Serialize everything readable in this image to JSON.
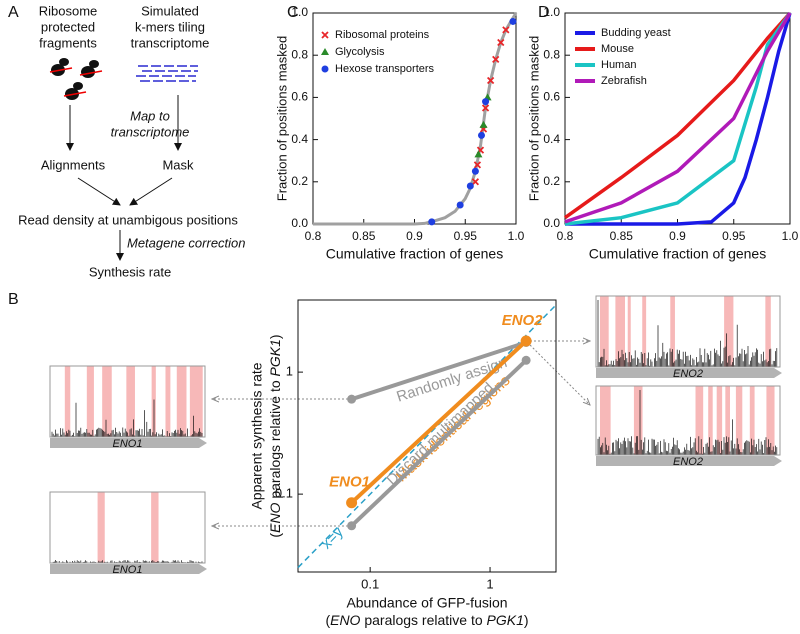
{
  "diagram": {
    "panel": "A",
    "ribosome_label": [
      "Ribosome",
      "protected",
      "fragments"
    ],
    "kmer_label": [
      "Simulated",
      "k-mers tiling",
      "transcriptome"
    ],
    "map_label": [
      "Map to",
      "transcriptome"
    ],
    "alignments": "Alignments",
    "mask": "Mask",
    "read_density": "Read density at unambigous positions",
    "metagene": "Metagene correction",
    "synthesis": "Synthesis rate"
  },
  "tracks": [
    {
      "label": "ENO1"
    },
    {
      "label": "ENO1"
    },
    {
      "label": "ENO2"
    },
    {
      "label": "ENO2"
    }
  ],
  "chart_data": [
    {
      "type": "scatter",
      "panel": "C",
      "x_label": "Cumulative fraction of genes",
      "y_label": "Fraction of positions masked",
      "xlim": [
        0.8,
        1
      ],
      "ylim": [
        0,
        1
      ],
      "xticks": [
        0.8,
        0.85,
        0.9,
        0.95,
        {
          "value": 1,
          "label": "1.0"
        }
      ],
      "yticks": [
        {
          "value": 0,
          "label": "0.0"
        },
        0.2,
        0.4,
        0.6,
        0.8,
        {
          "value": 1,
          "label": "1.0"
        }
      ],
      "legend": "upper left",
      "curve": {
        "color": "#a0a0a0",
        "x": [
          0.8,
          0.9,
          0.91,
          0.92,
          0.93,
          0.94,
          0.95,
          0.955,
          0.96,
          0.965,
          0.97,
          0.975,
          0.98,
          0.985,
          0.99,
          0.995,
          1
        ],
        "values": [
          0,
          0,
          0.003,
          0.015,
          0.03,
          0.06,
          0.12,
          0.17,
          0.25,
          0.37,
          0.55,
          0.68,
          0.78,
          0.86,
          0.92,
          0.96,
          1
        ]
      },
      "series": [
        {
          "name": "Ribosomal proteins",
          "color": "#e8262a",
          "marker": "x",
          "x": [
            0.96,
            0.962,
            0.965,
            0.968,
            0.97,
            0.975,
            0.98,
            0.985,
            0.99
          ],
          "values": [
            0.2,
            0.28,
            0.35,
            0.45,
            0.55,
            0.68,
            0.78,
            0.86,
            0.92
          ]
        },
        {
          "name": "Glycolysis",
          "color": "#2a8a2a",
          "marker": "triangle",
          "x": [
            0.963,
            0.968,
            0.972
          ],
          "values": [
            0.33,
            0.47,
            0.6
          ]
        },
        {
          "name": "Hexose transporters",
          "color": "#1f3fe0",
          "marker": "circle",
          "x": [
            0.917,
            0.945,
            0.955,
            0.96,
            0.966,
            0.97,
            0.997
          ],
          "values": [
            0.01,
            0.09,
            0.18,
            0.25,
            0.42,
            0.58,
            0.96
          ]
        }
      ]
    },
    {
      "type": "line",
      "panel": "D",
      "x_label": "Cumulative fraction of genes",
      "y_label": "Fraction of positions masked",
      "xlim": [
        0.8,
        1
      ],
      "ylim": [
        0,
        1
      ],
      "xticks": [
        0.8,
        0.85,
        0.9,
        0.95,
        {
          "value": 1,
          "label": "1.0"
        }
      ],
      "yticks": [
        {
          "value": 0,
          "label": "0.0"
        },
        0.2,
        0.4,
        0.6,
        0.8,
        {
          "value": 1,
          "label": "1.0"
        }
      ],
      "legend": "upper left",
      "series": [
        {
          "name": "Budding yeast",
          "color": "#1a1ae6",
          "x": [
            0.8,
            0.9,
            0.93,
            0.95,
            0.96,
            0.97,
            0.98,
            0.99,
            1
          ],
          "values": [
            0,
            0,
            0.01,
            0.1,
            0.22,
            0.4,
            0.6,
            0.82,
            1
          ]
        },
        {
          "name": "Mouse",
          "color": "#e61a1a",
          "x": [
            0.8,
            0.85,
            0.9,
            0.95,
            0.98,
            1
          ],
          "values": [
            0.03,
            0.22,
            0.42,
            0.68,
            0.88,
            1
          ]
        },
        {
          "name": "Human",
          "color": "#1ac4c4",
          "x": [
            0.8,
            0.85,
            0.9,
            0.95,
            0.97,
            0.98,
            1
          ],
          "values": [
            0,
            0.03,
            0.1,
            0.3,
            0.65,
            0.85,
            1
          ]
        },
        {
          "name": "Zebrafish",
          "color": "#b01ab8",
          "x": [
            0.8,
            0.85,
            0.9,
            0.95,
            0.98,
            1
          ],
          "values": [
            0.01,
            0.1,
            0.25,
            0.5,
            0.82,
            1
          ]
        }
      ]
    },
    {
      "type": "line",
      "panel": "B",
      "x_label": [
        "Abundance of GFP-fusion",
        [
          "(",
          "ENO",
          " paralogs relative to ",
          "PGK1",
          ")"
        ]
      ],
      "y_label": [
        "Apparent synthesis rate",
        [
          "(",
          "ENO",
          " paralogs relative to ",
          "PGK1",
          ")"
        ]
      ],
      "xscale": "log",
      "yscale": "log",
      "xlim": [
        0.025,
        3.55
      ],
      "ylim": [
        0.023,
        3.9
      ],
      "xticks": [
        0.1,
        1
      ],
      "yticks": [
        0.1,
        1
      ],
      "point_labels": [
        "ENO1",
        "ENO2"
      ],
      "point_label_color": "#f08c1e",
      "reference_line": {
        "label": "x=y",
        "color": "#2aa0c8"
      },
      "series": [
        {
          "name": "Randomly assign",
          "color": "#999999",
          "x": [
            0.07,
            2
          ],
          "values": [
            0.6,
            1.75
          ]
        },
        {
          "name": "Mask identical regions",
          "color": "#f08c1e",
          "x": [
            0.07,
            2
          ],
          "values": [
            0.085,
            1.8
          ]
        },
        {
          "name": "Discard multimapped",
          "color": "#999999",
          "x": [
            0.07,
            2
          ],
          "values": [
            0.055,
            1.25
          ]
        }
      ]
    }
  ]
}
